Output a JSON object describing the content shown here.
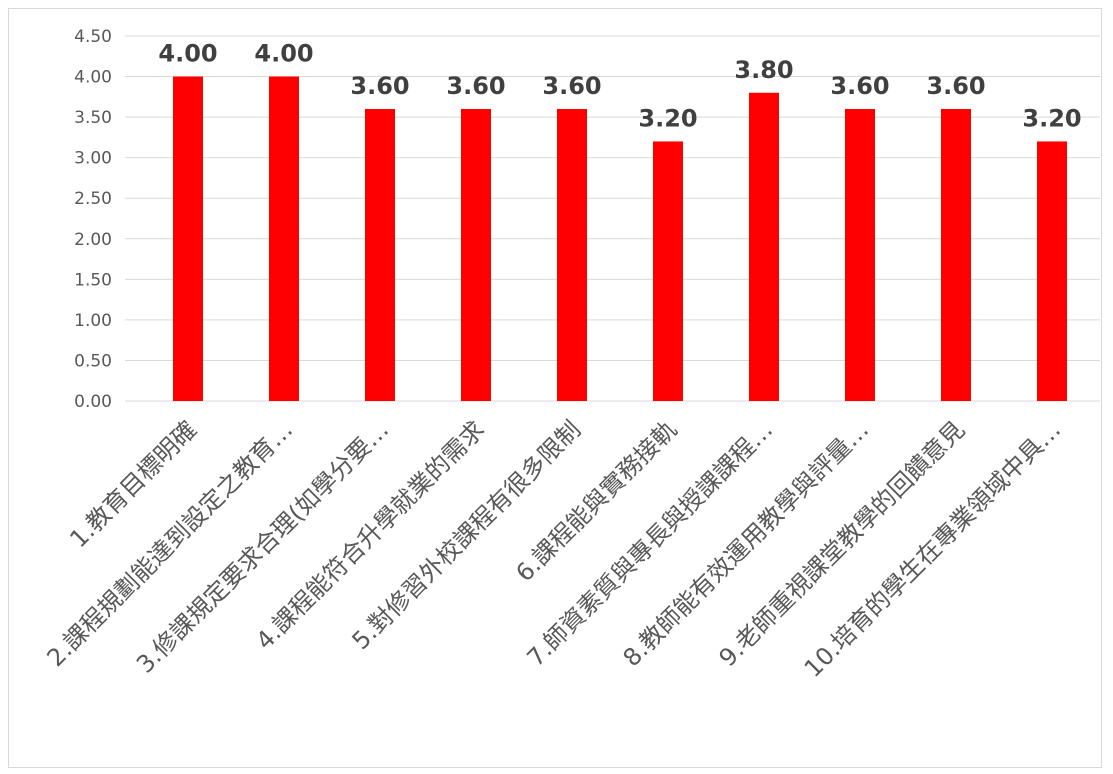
{
  "chart_data": {
    "type": "bar",
    "title": "",
    "xlabel": "",
    "ylabel": "",
    "ylim": [
      0,
      4.5
    ],
    "yticks": [
      "0.00",
      "0.50",
      "1.00",
      "1.50",
      "2.00",
      "2.50",
      "3.00",
      "3.50",
      "4.00",
      "4.50"
    ],
    "grid": true,
    "legend": "none",
    "categories": [
      "1.教育目標明確",
      "2.課程規劃能達到設定之教育…",
      "3.修課規定要求合理(如學分要…",
      "4.課程能符合升學就業的需求",
      "5.對修習外校課程有很多限制",
      "6.課程能與實務接軌",
      "7.師資素質與專長與授課課程…",
      "8.教師能有效運用教學與評量…",
      "9.老師重視課堂教學的回饋意見",
      "10.培育的學生在專業領域中具…"
    ],
    "values": [
      4.0,
      4.0,
      3.6,
      3.6,
      3.6,
      3.2,
      3.8,
      3.6,
      3.6,
      3.2
    ],
    "data_labels": [
      "4.00",
      "4.00",
      "3.60",
      "3.60",
      "3.60",
      "3.20",
      "3.80",
      "3.60",
      "3.60",
      "3.20"
    ],
    "bar_color": "#ff0000",
    "grid_color": "#d9d9d9"
  }
}
